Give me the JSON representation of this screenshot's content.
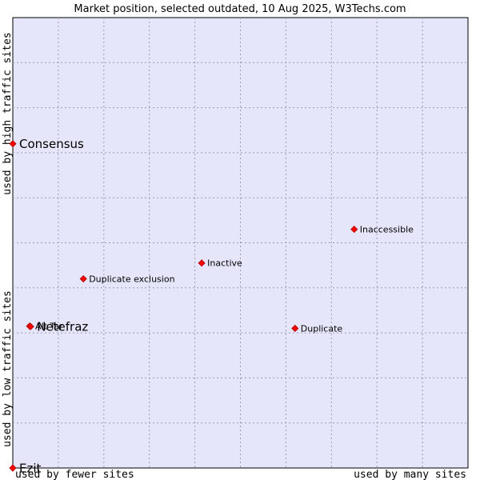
{
  "chart_data": {
    "type": "scatter",
    "title": "Market position, selected outdated, 10 Aug 2025, W3Techs.com",
    "x_axis": {
      "low_label": "used by fewer sites",
      "high_label": "used by many sites"
    },
    "y_axis": {
      "low_label": "used by low traffic sites",
      "high_label": "used by high traffic sites"
    },
    "xlim": [
      0,
      100
    ],
    "ylim": [
      0,
      100
    ],
    "grid": true,
    "colors": {
      "plot_background": "#e6e6fa",
      "grid": "#9a9ab4",
      "marker": "#ff0000",
      "marker_edge": "#aa0000"
    },
    "points": [
      {
        "name": "Consensus",
        "x": 0.0,
        "y": 72.0,
        "emphasis": true
      },
      {
        "name": "Inaccessible",
        "x": 75.0,
        "y": 53.0,
        "emphasis": false
      },
      {
        "name": "Inactive",
        "x": 41.5,
        "y": 45.5,
        "emphasis": false
      },
      {
        "name": "Duplicate exclusion",
        "x": 15.5,
        "y": 42.0,
        "emphasis": false
      },
      {
        "name": "Alt Tar",
        "x": 3.7,
        "y": 31.5,
        "emphasis": false
      },
      {
        "name": "Netefraz",
        "x": 3.9,
        "y": 31.4,
        "emphasis": true
      },
      {
        "name": "Duplicate",
        "x": 62.0,
        "y": 31.0,
        "emphasis": false
      },
      {
        "name": "Ezit",
        "x": 0.0,
        "y": 0.0,
        "emphasis": true
      }
    ]
  }
}
